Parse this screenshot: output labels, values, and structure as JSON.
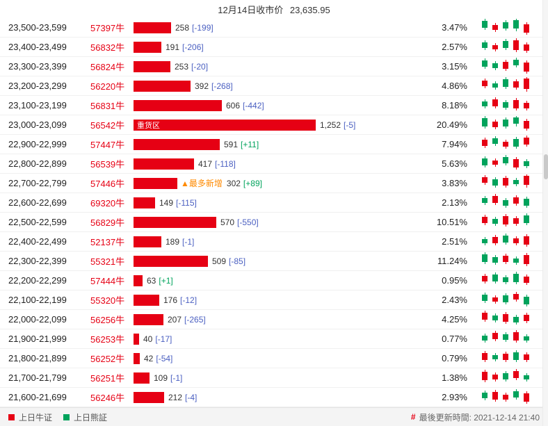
{
  "header": {
    "title_left": "12月14日收市价",
    "close_price": "23,635.95"
  },
  "footer": {
    "bull_label": "上日牛证",
    "bear_label": "上日熊証",
    "update_prefix": "#",
    "updated_label": "最後更新時間: 2021-12-14 21:40"
  },
  "colors": {
    "red": "#e60014",
    "green": "#00a35c",
    "orange": "#ff8a00",
    "pos": "#00a35c",
    "neg": "#4a5fc1"
  },
  "chart_data": {
    "type": "bar",
    "title": "12月14日收市价 23,635.95",
    "legend": [
      "上日牛证",
      "上日熊証"
    ],
    "categories": [
      "23,500-23,599",
      "23,400-23,499",
      "23,300-23,399",
      "23,200-23,299",
      "23,100-23,199",
      "23,000-23,099",
      "22,900-22,999",
      "22,800-22,899",
      "22,700-22,799",
      "22,600-22,699",
      "22,500-22,599",
      "22,400-22,499",
      "22,300-22,399",
      "22,200-22,299",
      "22,100-22,199",
      "22,000-22,099",
      "21,900-21,999",
      "21,800-21,899",
      "21,700-21,799",
      "21,600-21,699"
    ],
    "values": [
      258,
      191,
      253,
      392,
      606,
      1252,
      591,
      417,
      302,
      149,
      570,
      189,
      509,
      63,
      176,
      207,
      40,
      42,
      109,
      212
    ],
    "rows": [
      {
        "range": "23,500-23,599",
        "code": "57397牛",
        "value": 258,
        "value_label": "258",
        "change": "[-199]",
        "change_dir": "neg",
        "pct": "3.47%",
        "bar_tag": null,
        "pre_tag": null,
        "candles": [
          [
            "g",
            3,
            10
          ],
          [
            "r",
            9,
            7
          ],
          [
            "g",
            5,
            9
          ],
          [
            "g",
            2,
            12
          ],
          [
            "r",
            8,
            12
          ]
        ]
      },
      {
        "range": "23,400-23,499",
        "code": "56832牛",
        "value": 191,
        "value_label": "191",
        "change": "[-206]",
        "change_dir": "neg",
        "pct": "2.57%",
        "bar_tag": null,
        "pre_tag": null,
        "candles": [
          [
            "g",
            6,
            8
          ],
          [
            "r",
            10,
            6
          ],
          [
            "g",
            4,
            10
          ],
          [
            "r",
            3,
            14
          ],
          [
            "r",
            9,
            9
          ]
        ]
      },
      {
        "range": "23,300-23,399",
        "code": "56824牛",
        "value": 253,
        "value_label": "253",
        "change": "[-20]",
        "change_dir": "neg",
        "pct": "3.15%",
        "bar_tag": null,
        "pre_tag": null,
        "candles": [
          [
            "g",
            4,
            9
          ],
          [
            "g",
            8,
            7
          ],
          [
            "r",
            6,
            10
          ],
          [
            "g",
            3,
            8
          ],
          [
            "r",
            7,
            13
          ]
        ]
      },
      {
        "range": "23,200-23,299",
        "code": "56220牛",
        "value": 392,
        "value_label": "392",
        "change": "[-268]",
        "change_dir": "neg",
        "pct": "4.86%",
        "bar_tag": null,
        "pre_tag": null,
        "candles": [
          [
            "r",
            5,
            8
          ],
          [
            "g",
            9,
            6
          ],
          [
            "g",
            3,
            11
          ],
          [
            "r",
            6,
            9
          ],
          [
            "r",
            2,
            15
          ]
        ]
      },
      {
        "range": "23,100-23,199",
        "code": "56831牛",
        "value": 606,
        "value_label": "606",
        "change": "[-442]",
        "change_dir": "neg",
        "pct": "8.18%",
        "bar_tag": null,
        "pre_tag": null,
        "candles": [
          [
            "g",
            7,
            7
          ],
          [
            "r",
            4,
            10
          ],
          [
            "g",
            8,
            8
          ],
          [
            "r",
            5,
            12
          ],
          [
            "r",
            9,
            8
          ]
        ]
      },
      {
        "range": "23,000-23,099",
        "code": "56542牛",
        "value": 1252,
        "value_label": "1,252",
        "change": "[-5]",
        "change_dir": "neg",
        "pct": "20.49%",
        "bar_tag": "重货区",
        "pre_tag": null,
        "candles": [
          [
            "g",
            3,
            12
          ],
          [
            "r",
            8,
            8
          ],
          [
            "g",
            5,
            10
          ],
          [
            "g",
            2,
            9
          ],
          [
            "r",
            7,
            11
          ]
        ]
      },
      {
        "range": "22,900-22,999",
        "code": "57447牛",
        "value": 591,
        "value_label": "591",
        "change": "[+11]",
        "change_dir": "pos",
        "pct": "7.94%",
        "bar_tag": null,
        "pre_tag": null,
        "candles": [
          [
            "r",
            6,
            9
          ],
          [
            "g",
            4,
            8
          ],
          [
            "r",
            9,
            7
          ],
          [
            "g",
            5,
            11
          ],
          [
            "r",
            3,
            10
          ]
        ]
      },
      {
        "range": "22,800-22,899",
        "code": "56539牛",
        "value": 417,
        "value_label": "417",
        "change": "[-118]",
        "change_dir": "neg",
        "pct": "5.63%",
        "bar_tag": null,
        "pre_tag": null,
        "candles": [
          [
            "g",
            5,
            10
          ],
          [
            "r",
            8,
            6
          ],
          [
            "g",
            3,
            9
          ],
          [
            "r",
            6,
            12
          ],
          [
            "g",
            9,
            7
          ]
        ]
      },
      {
        "range": "22,700-22,799",
        "code": "57446牛",
        "value": 302,
        "value_label": "302",
        "change": "[+89]",
        "change_dir": "pos",
        "pct": "3.83%",
        "bar_tag": null,
        "pre_tag": "▲最多新增",
        "candles": [
          [
            "r",
            4,
            8
          ],
          [
            "g",
            7,
            9
          ],
          [
            "r",
            5,
            11
          ],
          [
            "g",
            8,
            6
          ],
          [
            "r",
            2,
            13
          ]
        ]
      },
      {
        "range": "22,600-22,699",
        "code": "69320牛",
        "value": 149,
        "value_label": "149",
        "change": "[-115]",
        "change_dir": "neg",
        "pct": "2.13%",
        "bar_tag": null,
        "pre_tag": null,
        "candles": [
          [
            "g",
            6,
            7
          ],
          [
            "r",
            3,
            10
          ],
          [
            "g",
            9,
            8
          ],
          [
            "r",
            5,
            9
          ],
          [
            "g",
            7,
            10
          ]
        ]
      },
      {
        "range": "22,500-22,599",
        "code": "56829牛",
        "value": 570,
        "value_label": "570",
        "change": "[-550]",
        "change_dir": "neg",
        "pct": "10.51%",
        "bar_tag": null,
        "pre_tag": null,
        "candles": [
          [
            "r",
            5,
            9
          ],
          [
            "g",
            8,
            7
          ],
          [
            "r",
            4,
            12
          ],
          [
            "r",
            7,
            8
          ],
          [
            "g",
            3,
            11
          ]
        ]
      },
      {
        "range": "22,400-22,499",
        "code": "52137牛",
        "value": 189,
        "value_label": "189",
        "change": "[-1]",
        "change_dir": "neg",
        "pct": "2.51%",
        "bar_tag": null,
        "pre_tag": null,
        "candles": [
          [
            "g",
            9,
            6
          ],
          [
            "r",
            6,
            9
          ],
          [
            "g",
            4,
            10
          ],
          [
            "r",
            8,
            7
          ],
          [
            "r",
            5,
            12
          ]
        ]
      },
      {
        "range": "22,300-22,399",
        "code": "55321牛",
        "value": 509,
        "value_label": "509",
        "change": "[-85]",
        "change_dir": "neg",
        "pct": "11.24%",
        "bar_tag": null,
        "pre_tag": null,
        "candles": [
          [
            "g",
            3,
            11
          ],
          [
            "g",
            7,
            8
          ],
          [
            "r",
            5,
            9
          ],
          [
            "g",
            9,
            6
          ],
          [
            "r",
            4,
            13
          ]
        ]
      },
      {
        "range": "22,200-22,299",
        "code": "57444牛",
        "value": 63,
        "value_label": "63",
        "change": "[+1]",
        "change_dir": "pos",
        "pct": "0.95%",
        "bar_tag": null,
        "pre_tag": null,
        "candles": [
          [
            "r",
            6,
            8
          ],
          [
            "g",
            4,
            10
          ],
          [
            "g",
            8,
            7
          ],
          [
            "g",
            3,
            12
          ],
          [
            "r",
            7,
            9
          ]
        ]
      },
      {
        "range": "22,100-22,199",
        "code": "55320牛",
        "value": 176,
        "value_label": "176",
        "change": "[-12]",
        "change_dir": "neg",
        "pct": "2.43%",
        "bar_tag": null,
        "pre_tag": null,
        "candles": [
          [
            "g",
            5,
            9
          ],
          [
            "r",
            9,
            6
          ],
          [
            "g",
            6,
            10
          ],
          [
            "r",
            4,
            8
          ],
          [
            "g",
            8,
            11
          ]
        ]
      },
      {
        "range": "22,000-22,099",
        "code": "56256牛",
        "value": 207,
        "value_label": "207",
        "change": "[-265]",
        "change_dir": "neg",
        "pct": "4.25%",
        "bar_tag": null,
        "pre_tag": null,
        "candles": [
          [
            "r",
            3,
            10
          ],
          [
            "g",
            7,
            7
          ],
          [
            "r",
            5,
            11
          ],
          [
            "g",
            9,
            8
          ],
          [
            "r",
            6,
            9
          ]
        ]
      },
      {
        "range": "21,900-21,999",
        "code": "56253牛",
        "value": 40,
        "value_label": "40",
        "change": "[-17]",
        "change_dir": "neg",
        "pct": "0.77%",
        "bar_tag": null,
        "pre_tag": null,
        "candles": [
          [
            "g",
            8,
            7
          ],
          [
            "r",
            4,
            9
          ],
          [
            "g",
            6,
            8
          ],
          [
            "r",
            3,
            12
          ],
          [
            "g",
            9,
            6
          ]
        ]
      },
      {
        "range": "21,800-21,899",
        "code": "56252牛",
        "value": 42,
        "value_label": "42",
        "change": "[-54]",
        "change_dir": "neg",
        "pct": "0.79%",
        "bar_tag": null,
        "pre_tag": null,
        "candles": [
          [
            "r",
            5,
            10
          ],
          [
            "g",
            8,
            6
          ],
          [
            "r",
            6,
            9
          ],
          [
            "g",
            4,
            11
          ],
          [
            "r",
            7,
            8
          ]
        ]
      },
      {
        "range": "21,700-21,799",
        "code": "56251牛",
        "value": 109,
        "value_label": "109",
        "change": "[-1]",
        "change_dir": "neg",
        "pct": "1.38%",
        "bar_tag": null,
        "pre_tag": null,
        "candles": [
          [
            "r",
            4,
            12
          ],
          [
            "r",
            8,
            7
          ],
          [
            "g",
            6,
            9
          ],
          [
            "r",
            3,
            10
          ],
          [
            "g",
            9,
            6
          ]
        ]
      },
      {
        "range": "21,600-21,699",
        "code": "56246牛",
        "value": 212,
        "value_label": "212",
        "change": "[-4]",
        "change_dir": "neg",
        "pct": "2.93%",
        "bar_tag": null,
        "pre_tag": null,
        "candles": [
          [
            "g",
            6,
            8
          ],
          [
            "r",
            5,
            11
          ],
          [
            "r",
            9,
            7
          ],
          [
            "g",
            4,
            9
          ],
          [
            "r",
            7,
            12
          ]
        ]
      }
    ]
  }
}
